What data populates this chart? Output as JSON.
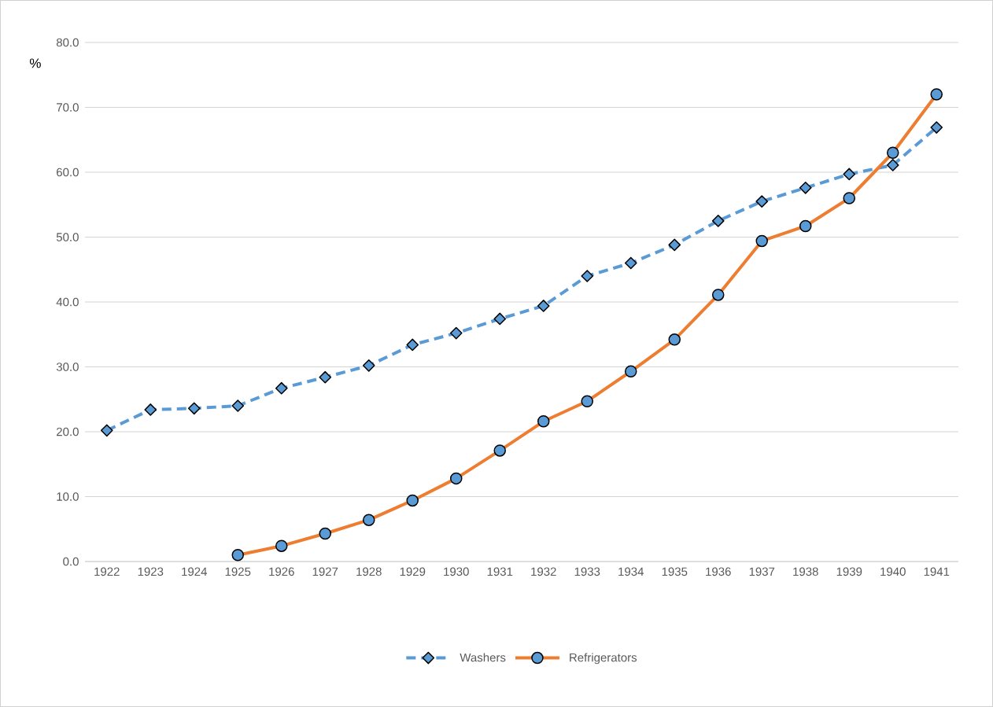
{
  "chart_data": {
    "type": "line",
    "ylabel": "%",
    "categories": [
      "1922",
      "1923",
      "1924",
      "1925",
      "1926",
      "1927",
      "1928",
      "1929",
      "1930",
      "1931",
      "1932",
      "1933",
      "1934",
      "1935",
      "1936",
      "1937",
      "1938",
      "1939",
      "1940",
      "1941"
    ],
    "series": [
      {
        "name": "Washers",
        "color": "#5b9bd5",
        "line_style": "dashed",
        "marker": "diamond",
        "values": [
          20.2,
          23.4,
          23.6,
          24.0,
          26.7,
          28.4,
          30.2,
          33.4,
          35.2,
          37.4,
          39.4,
          44.0,
          46.0,
          48.8,
          52.5,
          55.5,
          57.6,
          59.7,
          61.1,
          66.9
        ]
      },
      {
        "name": "Refrigerators",
        "color": "#ed7d31",
        "line_style": "solid",
        "marker": "circle",
        "values": [
          null,
          null,
          null,
          1.0,
          2.4,
          4.3,
          6.4,
          9.4,
          12.8,
          17.1,
          21.6,
          24.7,
          29.3,
          34.2,
          41.1,
          49.4,
          51.7,
          56.0,
          63.0,
          72.0
        ]
      }
    ],
    "ylim": [
      0,
      80
    ],
    "yticks": [
      {
        "value": 0,
        "label": "0.0"
      },
      {
        "value": 10,
        "label": "10.0"
      },
      {
        "value": 20,
        "label": "20.0"
      },
      {
        "value": 30,
        "label": "30.0"
      },
      {
        "value": 40,
        "label": "40.0"
      },
      {
        "value": 50,
        "label": "50.0"
      },
      {
        "value": 60,
        "label": "60.0"
      },
      {
        "value": 70,
        "label": "70.0"
      },
      {
        "value": 80,
        "label": "80.0"
      }
    ],
    "grid": "y",
    "legend": "bottom"
  }
}
